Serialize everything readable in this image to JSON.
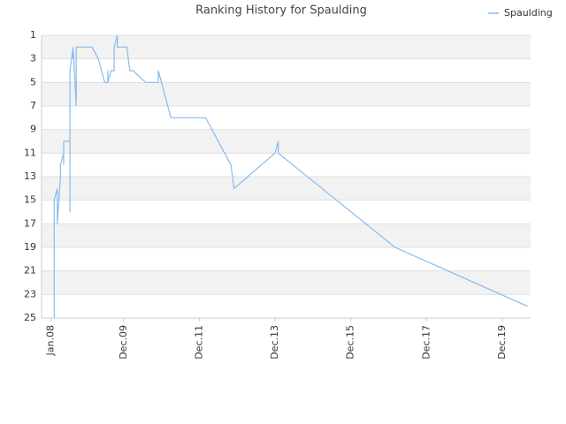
{
  "chart_data": {
    "type": "line",
    "title": "Ranking History for Spaulding",
    "x": [
      "2008-02",
      "2008-02",
      "2008-02",
      "2008-03",
      "2008-03",
      "2008-03",
      "2008-04",
      "2008-04",
      "2008-05",
      "2008-05",
      "2008-05",
      "2008-07",
      "2008-07",
      "2008-07",
      "2008-07",
      "2008-07",
      "2008-08",
      "2008-08",
      "2008-08",
      "2008-09",
      "2008-09",
      "2009-02",
      "2009-04",
      "2009-05",
      "2009-06",
      "2009-07",
      "2009-07",
      "2009-07",
      "2009-08",
      "2009-09",
      "2009-09",
      "2009-09",
      "2009-10",
      "2009-10",
      "2010-01",
      "2010-02",
      "2010-03",
      "2010-07",
      "2010-11",
      "2010-11",
      "2010-12",
      "2011-02",
      "2011-03",
      "2012-02",
      "2012-10",
      "2012-11",
      "2013-12",
      "2014-01",
      "2014-01",
      "2017-02",
      "2020-08"
    ],
    "series": [
      {
        "name": "Spaulding",
        "color": "#88bbee",
        "values": [
          22,
          25,
          15,
          14,
          16,
          17,
          13,
          12,
          11,
          12,
          10,
          10,
          16,
          9,
          8,
          4,
          2,
          3,
          2,
          7,
          2,
          2,
          3,
          4,
          5,
          5,
          4,
          5,
          4,
          4,
          3,
          2,
          1,
          2,
          2,
          4,
          4,
          5,
          5,
          4,
          5,
          7,
          8,
          8,
          12,
          14,
          11,
          10,
          11,
          19,
          24
        ]
      }
    ],
    "xlim": [
      "2007-10",
      "2020-09"
    ],
    "xticks": [
      {
        "value": "2008-01",
        "label": "Jan.08"
      },
      {
        "value": "2009-12",
        "label": "Dec.09"
      },
      {
        "value": "2011-12",
        "label": "Dec.11"
      },
      {
        "value": "2013-12",
        "label": "Dec.13"
      },
      {
        "value": "2015-12",
        "label": "Dec.15"
      },
      {
        "value": "2017-12",
        "label": "Dec.17"
      },
      {
        "value": "2019-12",
        "label": "Dec.19"
      }
    ],
    "ylim": [
      25,
      1
    ],
    "yticks": [
      1,
      3,
      5,
      7,
      9,
      11,
      13,
      15,
      17,
      19,
      21,
      23,
      25
    ],
    "grid": true,
    "legend": "top-right"
  }
}
